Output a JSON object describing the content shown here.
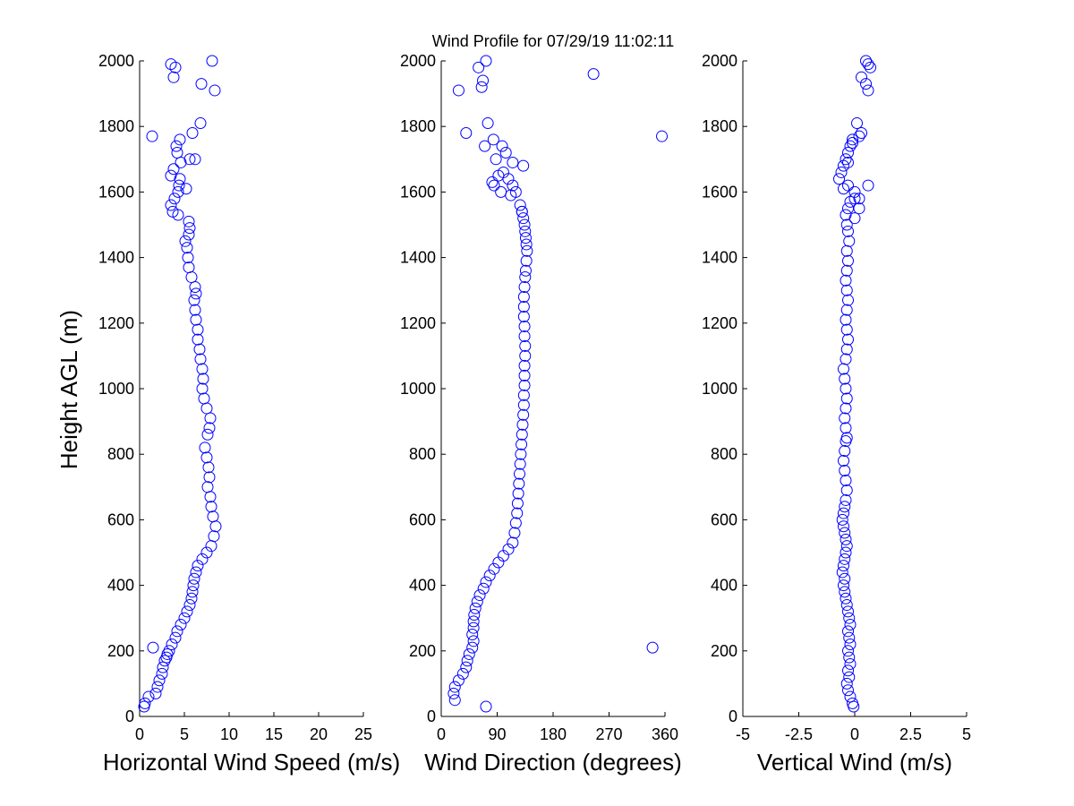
{
  "figure": {
    "title": "Wind Profile for  07/29/19 11:02:11",
    "ylabel": "Height AGL (m)"
  },
  "chart_data": [
    {
      "type": "scatter",
      "panel": "speed",
      "xlabel": "Horizontal Wind Speed (m/s)",
      "ylabel": "Height AGL (m)",
      "xlim": [
        0,
        25
      ],
      "ylim": [
        0,
        2000
      ],
      "xticks": [
        "0",
        "5",
        "10",
        "15",
        "20",
        "25"
      ],
      "xtick_values": [
        0,
        5,
        10,
        15,
        20,
        25
      ],
      "yticks": [
        "0",
        "200",
        "400",
        "600",
        "800",
        "1000",
        "1200",
        "1400",
        "1600",
        "1800",
        "2000"
      ],
      "ytick_values": [
        0,
        200,
        400,
        600,
        800,
        1000,
        1200,
        1400,
        1600,
        1800,
        2000
      ],
      "grid": false,
      "marker_color": "#0000ff",
      "x": [
        0.5,
        0.6,
        1.0,
        1.8,
        2.0,
        2.2,
        2.5,
        2.6,
        2.8,
        3.0,
        3.1,
        3.3,
        1.5,
        3.6,
        4.0,
        4.2,
        4.6,
        5.0,
        5.3,
        5.6,
        5.8,
        5.9,
        6.0,
        6.1,
        6.3,
        6.5,
        7.0,
        7.5,
        8.0,
        8.3,
        8.5,
        8.2,
        8.0,
        7.9,
        7.6,
        7.8,
        7.7,
        7.5,
        7.3,
        7.6,
        7.8,
        7.9,
        7.5,
        7.2,
        7.0,
        7.1,
        7.0,
        6.8,
        6.7,
        6.5,
        6.5,
        6.3,
        6.2,
        6.1,
        6.3,
        6.2,
        5.8,
        5.5,
        5.4,
        5.3,
        5.1,
        5.5,
        5.6,
        5.5,
        4.3,
        3.7,
        3.5,
        3.9,
        4.3,
        4.4,
        5.2,
        4.5,
        3.5,
        3.8,
        4.6,
        5.6,
        6.2,
        4.2,
        4.1,
        4.5,
        1.4,
        5.9,
        6.8,
        6.9,
        8.4,
        3.8,
        3.5,
        4.0,
        8.1
      ],
      "y": [
        30,
        40,
        60,
        70,
        90,
        110,
        130,
        150,
        170,
        180,
        190,
        200,
        210,
        220,
        240,
        260,
        280,
        300,
        320,
        340,
        360,
        380,
        400,
        420,
        440,
        460,
        480,
        500,
        520,
        550,
        580,
        610,
        640,
        670,
        700,
        730,
        760,
        790,
        820,
        860,
        880,
        910,
        940,
        970,
        1000,
        1030,
        1060,
        1090,
        1120,
        1150,
        1180,
        1210,
        1240,
        1270,
        1290,
        1310,
        1340,
        1370,
        1400,
        1430,
        1450,
        1470,
        1490,
        1510,
        1530,
        1540,
        1560,
        1580,
        1600,
        1620,
        1610,
        1640,
        1650,
        1670,
        1690,
        1700,
        1700,
        1720,
        1740,
        1760,
        1770,
        1780,
        1810,
        1930,
        1910,
        1950,
        1990,
        1980,
        2000
      ]
    },
    {
      "type": "scatter",
      "panel": "direction",
      "xlabel": "Wind Direction (degrees)",
      "xlim": [
        0,
        360
      ],
      "ylim": [
        0,
        2000
      ],
      "xticks": [
        "0",
        "90",
        "180",
        "270",
        "360"
      ],
      "xtick_values": [
        0,
        90,
        180,
        270,
        360
      ],
      "yticks": [
        "0",
        "200",
        "400",
        "600",
        "800",
        "1000",
        "1200",
        "1400",
        "1600",
        "1800",
        "2000"
      ],
      "ytick_values": [
        0,
        200,
        400,
        600,
        800,
        1000,
        1200,
        1400,
        1600,
        1800,
        2000
      ],
      "grid": false,
      "marker_color": "#0000ff",
      "x": [
        72,
        22,
        20,
        22,
        28,
        35,
        40,
        42,
        45,
        50,
        52,
        50,
        52,
        52,
        53,
        55,
        58,
        62,
        68,
        72,
        78,
        85,
        92,
        100,
        108,
        115,
        118,
        120,
        122,
        123,
        124,
        125,
        126,
        127,
        128,
        129,
        130,
        131,
        132,
        133,
        133,
        134,
        134,
        134,
        135,
        135,
        134,
        134,
        133,
        133,
        133,
        134,
        135,
        136,
        137,
        138,
        137,
        136,
        135,
        134,
        132,
        130,
        127,
        130,
        120,
        115,
        108,
        100,
        88,
        70,
        84,
        98,
        75,
        115,
        104,
        92,
        85,
        112,
        96,
        82,
        355,
        40,
        60,
        132,
        67,
        65,
        28,
        72,
        245,
        340
      ],
      "y": [
        30,
        50,
        70,
        90,
        110,
        130,
        150,
        170,
        190,
        210,
        230,
        250,
        270,
        290,
        310,
        330,
        350,
        370,
        390,
        410,
        430,
        450,
        470,
        490,
        510,
        530,
        560,
        590,
        620,
        650,
        680,
        710,
        740,
        770,
        800,
        830,
        860,
        890,
        920,
        950,
        980,
        1010,
        1040,
        1070,
        1100,
        1130,
        1160,
        1190,
        1220,
        1250,
        1280,
        1310,
        1340,
        1360,
        1390,
        1420,
        1440,
        1460,
        1480,
        1500,
        1520,
        1540,
        1560,
        1540,
        1600,
        1620,
        1640,
        1660,
        1700,
        1740,
        1760,
        1740,
        1810,
        1690,
        1720,
        1650,
        1620,
        1590,
        1600,
        1630,
        1770,
        1780,
        1980,
        1680,
        1940,
        1920,
        1910,
        2000,
        1960,
        210
      ]
    },
    {
      "type": "scatter",
      "panel": "vertical",
      "xlabel": "Vertical Wind (m/s)",
      "xlim": [
        -5,
        5
      ],
      "ylim": [
        0,
        2000
      ],
      "xticks": [
        "-5",
        "-2.5",
        "0",
        "2.5",
        "5"
      ],
      "xtick_values": [
        -5,
        -2.5,
        0,
        2.5,
        5
      ],
      "yticks": [
        "0",
        "200",
        "400",
        "600",
        "800",
        "1000",
        "1200",
        "1400",
        "1600",
        "1800",
        "2000"
      ],
      "ytick_values": [
        0,
        200,
        400,
        600,
        800,
        1000,
        1200,
        1400,
        1600,
        1800,
        2000
      ],
      "grid": false,
      "marker_color": "#0000ff",
      "x": [
        -0.05,
        -0.1,
        -0.2,
        -0.3,
        -0.35,
        -0.25,
        -0.3,
        -0.2,
        -0.25,
        -0.3,
        -0.2,
        -0.25,
        -0.3,
        -0.2,
        -0.25,
        -0.3,
        -0.35,
        -0.4,
        -0.45,
        -0.5,
        -0.45,
        -0.55,
        -0.5,
        -0.45,
        -0.4,
        -0.35,
        -0.4,
        -0.45,
        -0.5,
        -0.55,
        -0.5,
        -0.45,
        -0.4,
        -0.35,
        -0.4,
        -0.45,
        -0.5,
        -0.45,
        -0.4,
        -0.35,
        -0.4,
        -0.45,
        -0.4,
        -0.35,
        -0.4,
        -0.45,
        -0.5,
        -0.4,
        -0.35,
        -0.3,
        -0.35,
        -0.4,
        -0.35,
        -0.3,
        -0.35,
        -0.4,
        -0.35,
        -0.3,
        -0.35,
        -0.25,
        -0.3,
        -0.35,
        -0.4,
        -0.3,
        -0.2,
        0.2,
        0.0,
        -0.3,
        -0.5,
        -0.7,
        -0.6,
        -0.5,
        -0.4,
        -0.3,
        -0.2,
        -0.1,
        0.2,
        0.3,
        0.1,
        0.6,
        0.7,
        0.5,
        0.3,
        0.5,
        0.6,
        0.0,
        0.6,
        0.2,
        0.0,
        -0.1,
        -0.3
      ],
      "y": [
        30,
        40,
        60,
        80,
        100,
        120,
        140,
        160,
        180,
        200,
        220,
        240,
        260,
        280,
        300,
        320,
        340,
        360,
        380,
        400,
        420,
        440,
        460,
        480,
        500,
        520,
        540,
        560,
        580,
        600,
        620,
        640,
        660,
        690,
        720,
        750,
        780,
        810,
        840,
        850,
        880,
        910,
        940,
        970,
        1000,
        1030,
        1060,
        1090,
        1120,
        1150,
        1180,
        1210,
        1240,
        1270,
        1300,
        1330,
        1360,
        1390,
        1420,
        1450,
        1480,
        1500,
        1530,
        1550,
        1570,
        1580,
        1600,
        1620,
        1610,
        1640,
        1660,
        1680,
        1700,
        1720,
        1740,
        1760,
        1770,
        1780,
        1810,
        1990,
        1980,
        1930,
        1950,
        2000,
        1910,
        1580,
        1620,
        1550,
        1520,
        1750,
        1690
      ]
    }
  ]
}
